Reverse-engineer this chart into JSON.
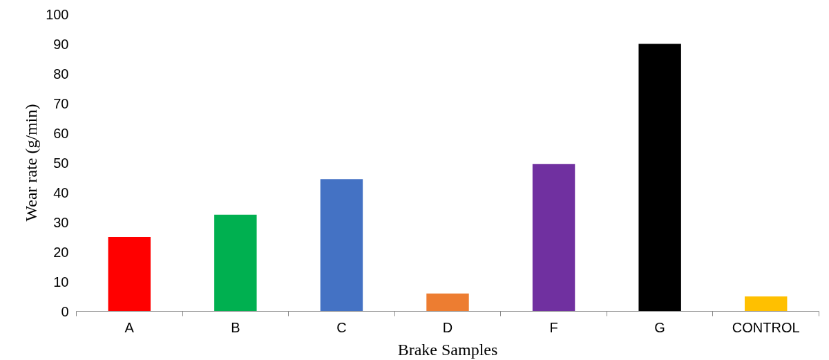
{
  "chart_data": {
    "type": "bar",
    "xlabel": "Brake Samples",
    "ylabel": "Wear rate (g/min)",
    "categories": [
      "A",
      "B",
      "C",
      "D",
      "F",
      "G",
      "CONTROL"
    ],
    "values": [
      25,
      32.5,
      44.5,
      6,
      49.6,
      90,
      5
    ],
    "colors": [
      "#ff0000",
      "#00b050",
      "#4472c4",
      "#ed7d31",
      "#7030a0",
      "#000000",
      "#ffc000"
    ],
    "ylim": [
      0,
      100
    ],
    "yticks": [
      0,
      10,
      20,
      30,
      40,
      50,
      60,
      70,
      80,
      90,
      100
    ],
    "grid": false
  }
}
